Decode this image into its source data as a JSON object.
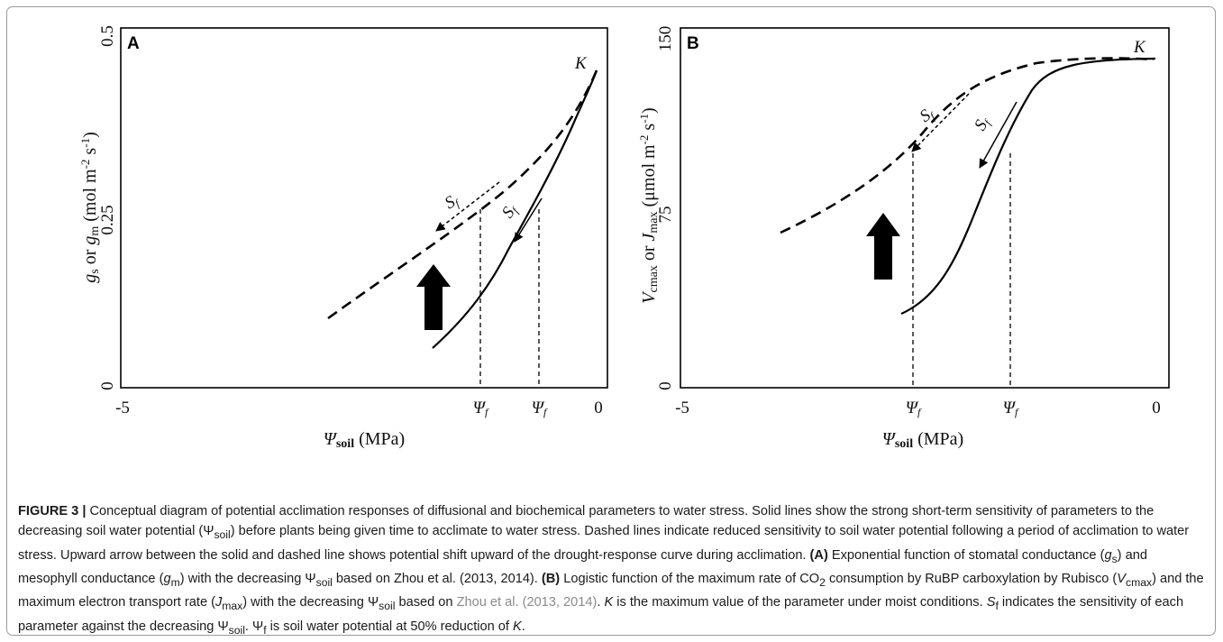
{
  "figure": {
    "panels": [
      {
        "letter": "A",
        "y_tick_top": "0.5",
        "y_tick_mid": "0.25",
        "y_tick_bottom": "0",
        "x_tick_left": "-5",
        "x_tick_right": "0",
        "psi_f_label_1": "Ψf",
        "psi_f_label_2": "Ψf",
        "k_label": "K",
        "s_f_label_1": "Sf",
        "s_f_label_2": "Sf",
        "x_title_main": "Ψsoil",
        "x_title_unit": " (MPa)",
        "y_title": "gs or gm (mol m-2 s-1)"
      },
      {
        "letter": "B",
        "y_tick_top": "150",
        "y_tick_mid": "75",
        "y_tick_bottom": "0",
        "x_tick_left": "-5",
        "x_tick_right": "0",
        "psi_f_label_1": "Ψf",
        "psi_f_label_2": "Ψf",
        "k_label": "K",
        "s_f_label_1": "Sf",
        "s_f_label_2": "Sf",
        "x_title_main": "Ψsoil",
        "x_title_unit": " (MPa)",
        "y_title": "Vcmax or Jmax (μmol m-2 s-1)"
      }
    ]
  },
  "caption": {
    "label": "FIGURE 3 |",
    "s1": " Conceptual diagram of potential acclimation responses of diffusional and biochemical parameters to water stress. Solid lines show the strong short-term sensitivity of parameters to the decreasing soil water potential (Ψ",
    "s1_sub": "soil",
    "s2": ") before plants being given time to acclimate to water stress. Dashed lines indicate reduced sensitivity to soil water potential following a period of acclimation to water stress. Upward arrow between the solid and dashed line shows potential shift upward of the drought-response curve during acclimation. ",
    "a_label": "(A)",
    "s3": " Exponential function of stomatal conductance (",
    "s3_g": "g",
    "s3_gsub": "s",
    "s4": ") and mesophyll conductance (",
    "s4_g": "g",
    "s4_gsub": "m",
    "s5": ") with the decreasing Ψ",
    "s5_sub": "soil",
    "s6": " based on Zhou et al. (2013, 2014). ",
    "b_label": "(B)",
    "s7": " Logistic function of the maximum rate of CO",
    "s7_sub": "2",
    "s8": " consumption by RuBP carboxylation by Rubisco (",
    "s8_v": "V",
    "s8_vsub": "cmax",
    "s9": ") and the maximum electron transport rate (",
    "s9_j": "J",
    "s9_jsub": "max",
    "s10": ") with the decreasing Ψ",
    "s10_sub": "soil",
    "s11": " based on ",
    "s11_ref": "Zhou et al. (2013, 2014)",
    "s12": ". ",
    "s12_k": "K",
    "s13": " is the maximum value of the parameter under moist conditions. ",
    "s13_s": "S",
    "s13_ssub": "f",
    "s14": " indicates the sensitivity of each parameter against the decreasing Ψ",
    "s14_sub": "soil",
    "s15": ". Ψ",
    "s15_sub": "f",
    "s16": " is soil water potential at 50% reduction of ",
    "s16_k": "K",
    "s17": "."
  }
}
